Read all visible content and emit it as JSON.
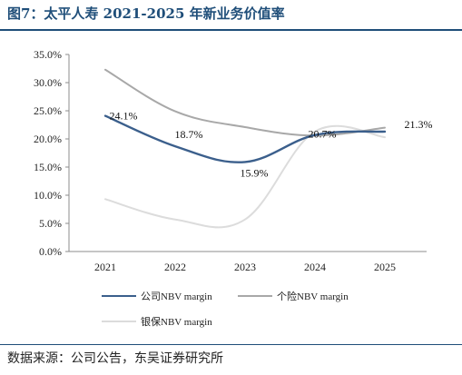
{
  "figure_title": "图7：太平人寿 2021-2025 年新业务价值率",
  "source_note": "数据来源：公司公告，东吴证券研究所",
  "chart_data": {
    "type": "line",
    "title": "",
    "xlabel": "",
    "ylabel": "",
    "x": [
      "2021",
      "2022",
      "2023",
      "2024",
      "2025"
    ],
    "ylim": [
      0,
      35
    ],
    "ytick_values": [
      0,
      5,
      10,
      15,
      20,
      25,
      30,
      35
    ],
    "ytick_labels": [
      "0.0%",
      "5.0%",
      "10.0%",
      "15.0%",
      "20.0%",
      "25.0%",
      "30.0%",
      "35.0%"
    ],
    "grid": false,
    "legend_position": "bottom",
    "series": [
      {
        "name": "公司NBV margin",
        "color": "#3b5f8c",
        "values": [
          24.1,
          18.7,
          15.9,
          20.7,
          21.3
        ],
        "data_labels": [
          "24.1%",
          "18.7%",
          "15.9%",
          "20.7%",
          "21.3%"
        ]
      },
      {
        "name": "个险NBV margin",
        "color": "#a8a8a8",
        "values": [
          32.3,
          24.9,
          22.1,
          20.6,
          22.0
        ]
      },
      {
        "name": "银保NBV margin",
        "color": "#dcdcdc",
        "values": [
          9.3,
          5.7,
          5.7,
          21.3,
          20.3
        ]
      }
    ]
  }
}
